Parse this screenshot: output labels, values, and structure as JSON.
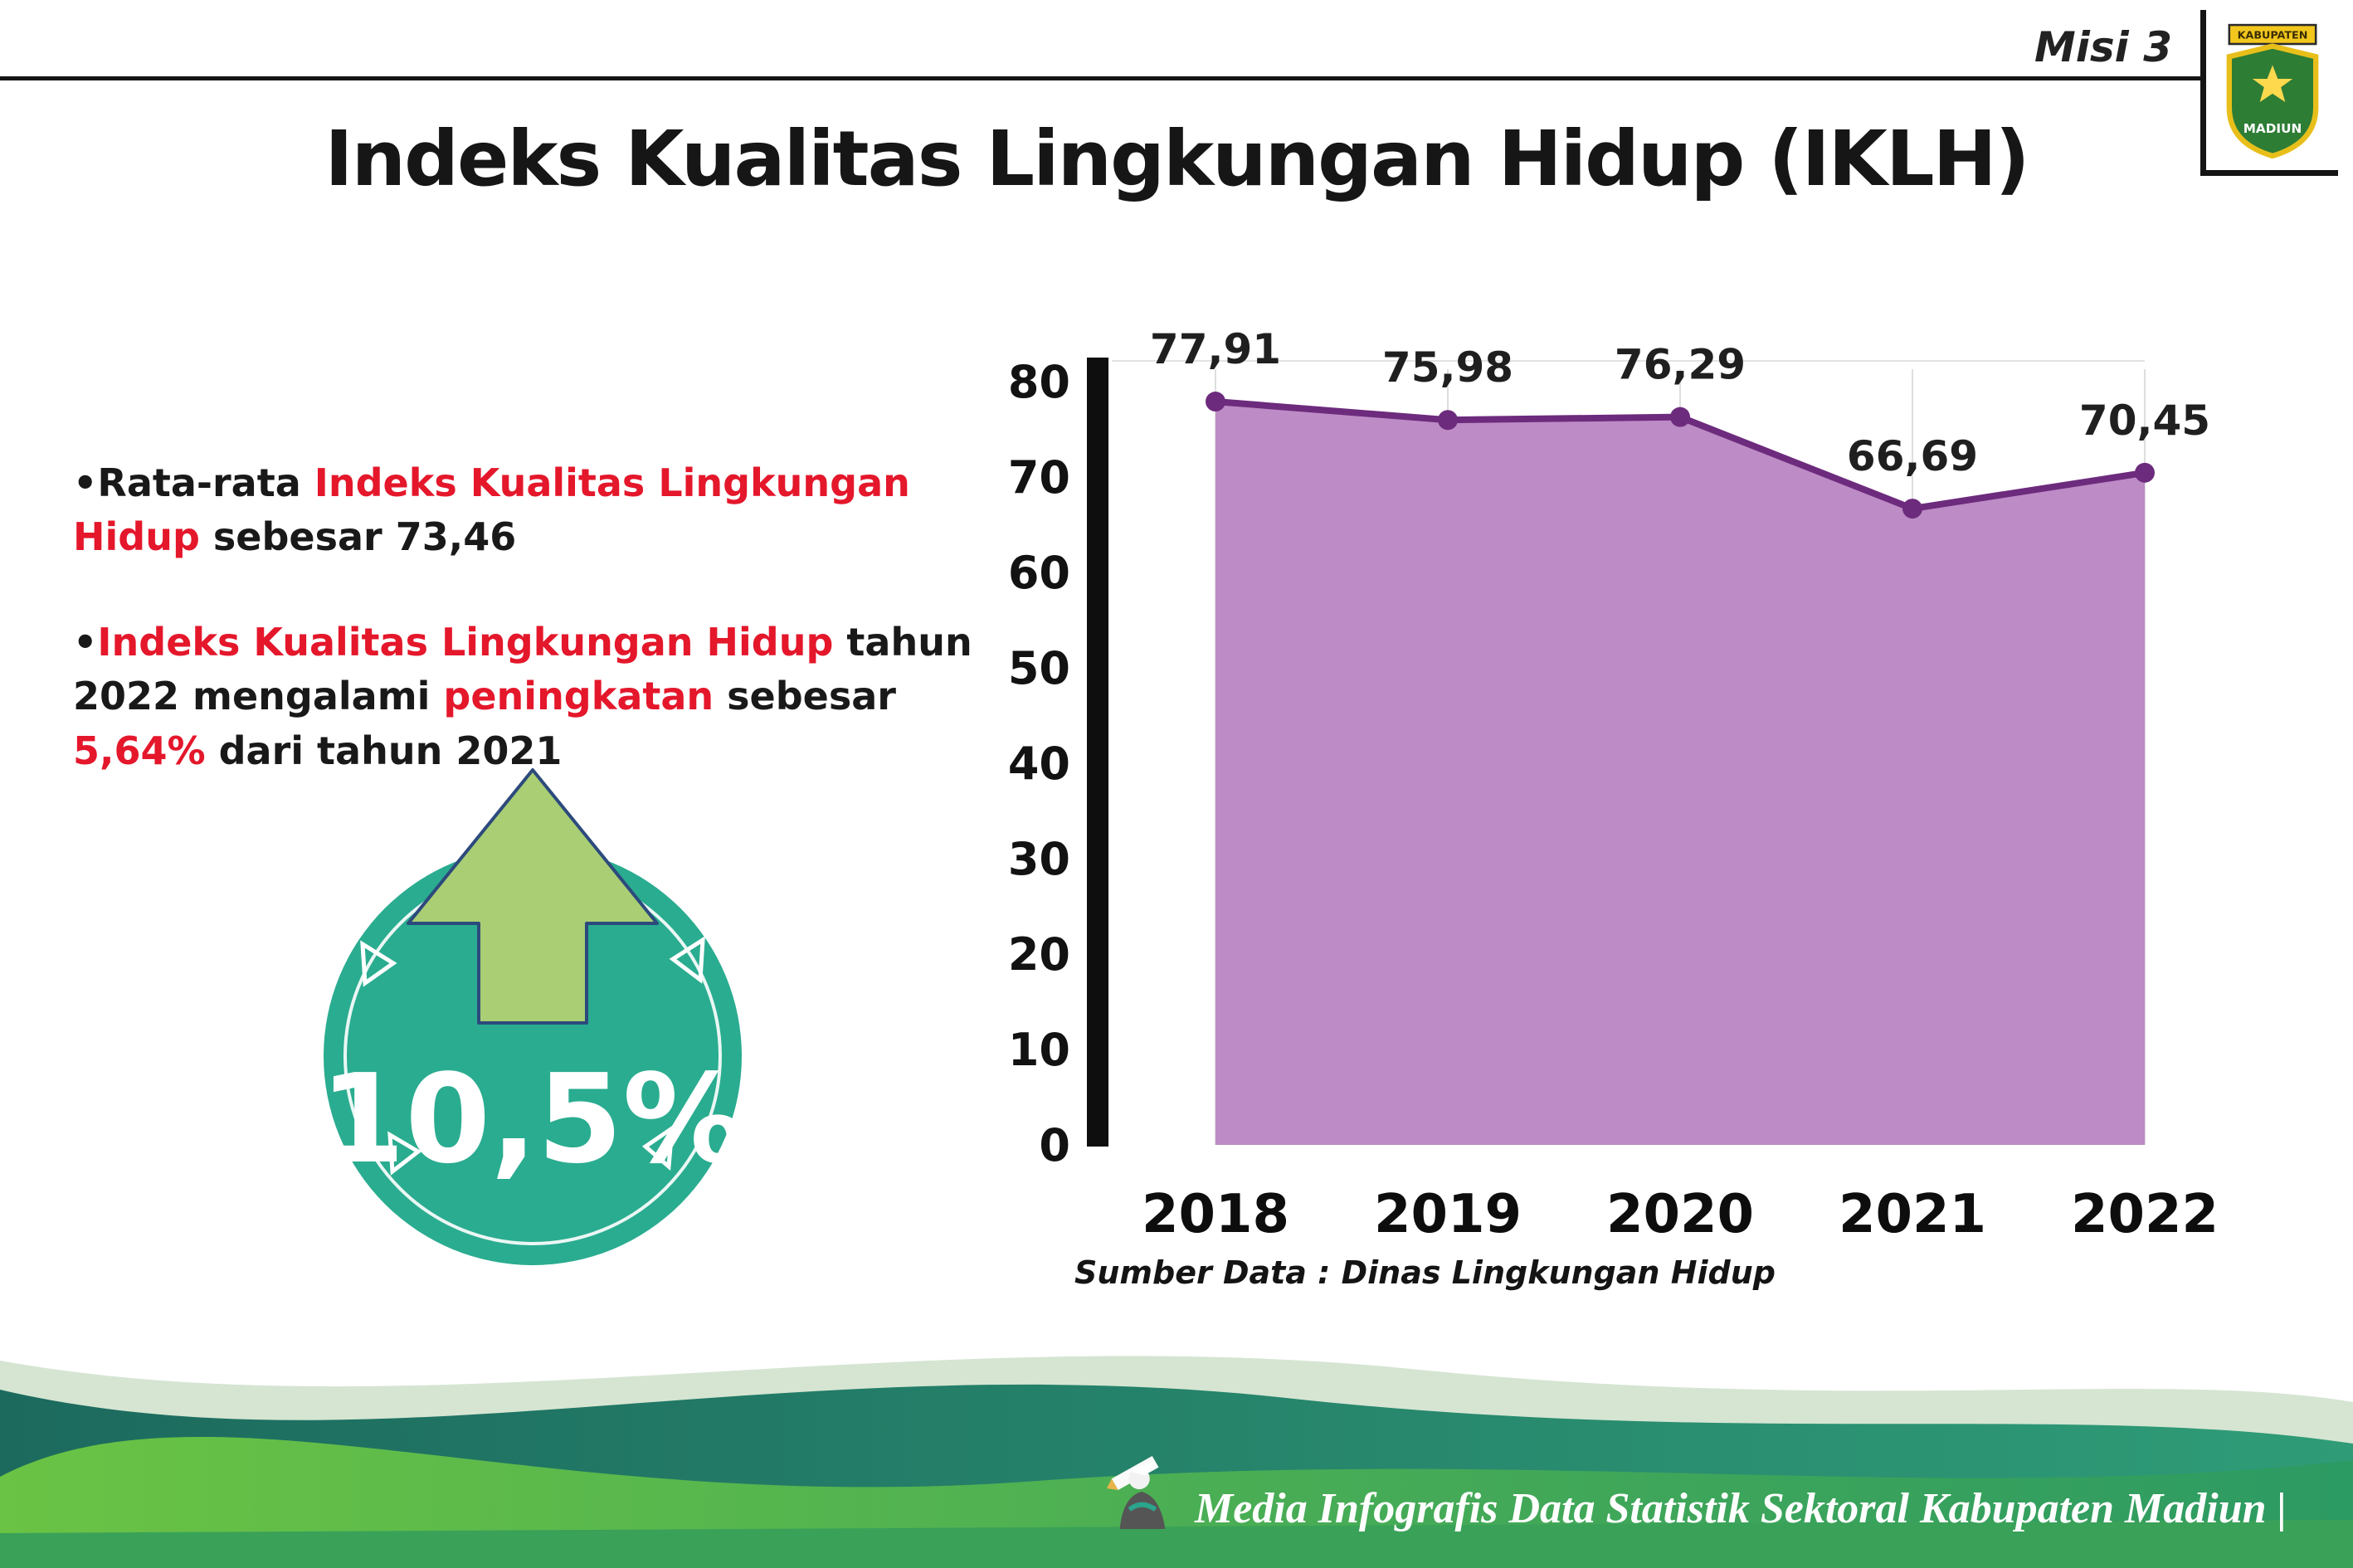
{
  "header": {
    "misi_label": "Misi 3",
    "logo": {
      "top": "KABUPATEN",
      "bottom": "MADIUN"
    }
  },
  "title": "Indeks Kualitas Lingkungan Hidup (IKLH)",
  "bullets": {
    "marker": "•",
    "b1": {
      "t1": "Rata-rata ",
      "t2": "Indeks Kualitas Lingkungan Hidup",
      "t3": " sebesar 73,46"
    },
    "b2": {
      "t1": "Indeks Kualitas Lingkungan Hidup",
      "t2": " tahun 2022 mengalami ",
      "t3": "peningkatan",
      "t4": " sebesar ",
      "t5": "5,64%",
      "t6": " dari tahun 2021"
    }
  },
  "badge": {
    "value": "10,5%"
  },
  "chart_data": {
    "type": "area",
    "title": "Indeks Kualitas Lingkungan Hidup (IKLH)",
    "categories": [
      "2018",
      "2019",
      "2020",
      "2021",
      "2022"
    ],
    "values": [
      77.91,
      75.98,
      76.29,
      66.69,
      70.45
    ],
    "value_labels": [
      "77,91",
      "75,98",
      "76,29",
      "66,69",
      "70,45"
    ],
    "ylim": [
      0,
      80
    ],
    "yticks": [
      0,
      10,
      20,
      30,
      40,
      50,
      60,
      70,
      80
    ],
    "grid": "vertical-light",
    "legend": "none",
    "fill_color": "#bd8bc5",
    "line_color": "#6d2b7d",
    "source": "Sumber Data : Dinas Lingkungan Hidup"
  },
  "footer": {
    "credit": "Media Infografis Data Statistik Sektoral Kabupaten Madiun |"
  },
  "colors": {
    "accent_red": "#e4172b",
    "badge_teal": "#2aac90",
    "arrow_green": "#a9ce74",
    "wave_dark_teal": "#1c6a5e",
    "wave_green": "#57b845"
  }
}
